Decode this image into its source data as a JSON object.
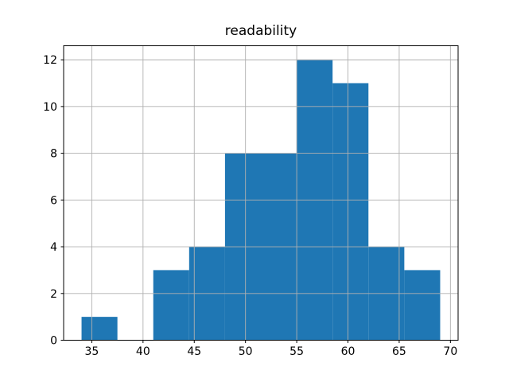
{
  "chart_data": {
    "type": "bar",
    "subtype": "histogram",
    "title": "readability",
    "xlabel": "",
    "ylabel": "",
    "bin_edges": [
      34.0,
      37.5,
      41.0,
      44.5,
      48.0,
      51.5,
      55.0,
      58.5,
      62.0,
      65.5,
      69.0
    ],
    "counts": [
      1,
      0,
      3,
      4,
      8,
      8,
      12,
      11,
      4,
      3
    ],
    "xticks": [
      35,
      40,
      45,
      50,
      55,
      60,
      65,
      70
    ],
    "yticks": [
      0,
      2,
      4,
      6,
      8,
      10,
      12
    ],
    "xlim": [
      32.25,
      70.75
    ],
    "ylim": [
      0,
      12.6
    ],
    "grid": true,
    "grid_above_bars": true,
    "legend": "none",
    "colors": {
      "bar": "#1f77b4",
      "grid": "#b0b0b0",
      "spine": "#000000",
      "tick": "#000000",
      "background": "#ffffff",
      "text": "#000000"
    }
  }
}
